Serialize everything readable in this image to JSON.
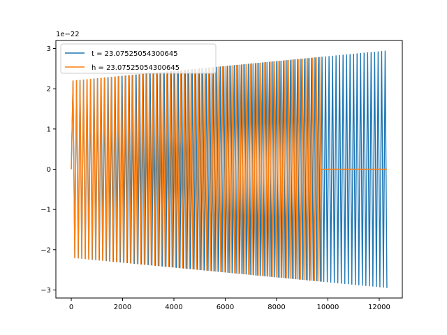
{
  "chart_data": {
    "type": "line",
    "title": "",
    "xlabel": "",
    "ylabel": "",
    "y_offset_text": "1e−22",
    "y_scale": 1e-22,
    "xlim": [
      -600,
      12900
    ],
    "ylim": [
      -3.2,
      3.2
    ],
    "x_ticks": [
      0,
      2000,
      4000,
      6000,
      8000,
      10000,
      12000
    ],
    "y_ticks": [
      -3,
      -2,
      -1,
      0,
      1,
      2,
      3
    ],
    "x_tick_labels": [
      "0",
      "2000",
      "4000",
      "6000",
      "8000",
      "10000",
      "12000"
    ],
    "y_tick_labels": [
      "−3",
      "−2",
      "−1",
      "0",
      "1",
      "2",
      "3"
    ],
    "grid": false,
    "legend_position": "upper-left",
    "series": [
      {
        "name": "t = 23.07525054300645",
        "color": "#1f77b4",
        "x_range": [
          0,
          12300
        ],
        "cycles": 90,
        "amplitude_start": 2.2,
        "amplitude_end": 2.95,
        "tail_zero_after": null
      },
      {
        "name": "h = 23.07525054300645",
        "color": "#ff7f0e",
        "x_range": [
          0,
          12300
        ],
        "cycles": 72,
        "amplitude_start": 2.2,
        "amplitude_end": 2.95,
        "tail_zero_after": 9750
      }
    ]
  }
}
